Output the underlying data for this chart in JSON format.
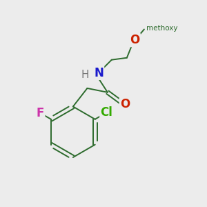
{
  "background_color": "#ececec",
  "bond_color": "#2d6b2d",
  "atom_colors": {
    "N": "#1a1acc",
    "O": "#cc2200",
    "Cl": "#33aa00",
    "F": "#cc33aa",
    "H": "#777777"
  },
  "font_size": 11,
  "lw": 1.4
}
